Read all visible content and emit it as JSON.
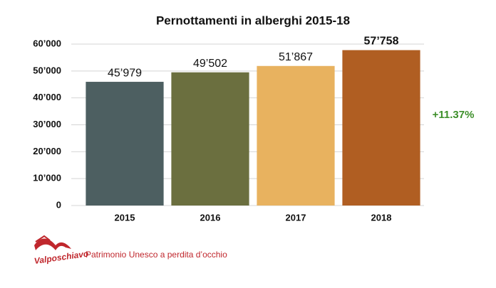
{
  "chart_data": {
    "type": "bar",
    "title": "Pernottamenti in alberghi 2015-18",
    "categories": [
      "2015",
      "2016",
      "2017",
      "2018"
    ],
    "values": [
      45979,
      49502,
      51867,
      57758
    ],
    "value_labels": [
      "45’979",
      "49’502",
      "51’867",
      "57’758"
    ],
    "colors": [
      "#4d5f61",
      "#6b6f3f",
      "#e8b25f",
      "#b05e22"
    ],
    "ylim": [
      0,
      60000
    ],
    "yticks": [
      0,
      {
        "value": 10000,
        "label": "10’000"
      },
      {
        "value": 20000,
        "label": "20’000"
      },
      {
        "value": 30000,
        "label": "30’000"
      },
      {
        "value": 40000,
        "label": "40’000"
      },
      {
        "value": 50000,
        "label": "50’000"
      },
      {
        "value": 60000,
        "label": "60’000"
      }
    ],
    "grid": true,
    "annotation": "+11.37%"
  },
  "footer": {
    "logo_text": "Valposchiavo",
    "slogan": "Patrimonio Unesco a perdita d’occhio"
  }
}
